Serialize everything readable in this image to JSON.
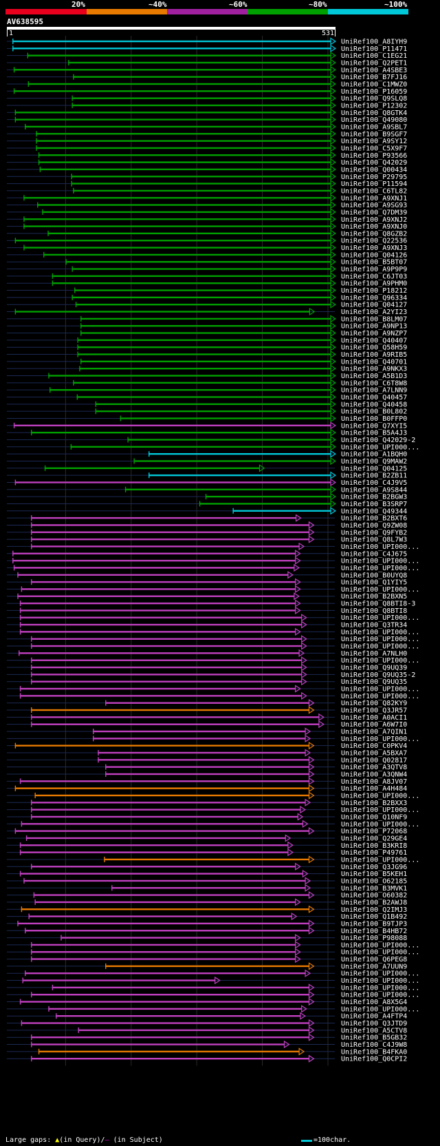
{
  "legend": {
    "labels": [
      "20%",
      "~40%",
      "~60%",
      "~80%",
      "~100%"
    ],
    "colors": [
      "#e8001c",
      "#e87a00",
      "#a020a0",
      "#00a000",
      "#00c8d8"
    ]
  },
  "query": {
    "id": "AV638595",
    "start": "1",
    "end": "531"
  },
  "chart_data": {
    "type": "alignment-overview",
    "query_length": 531,
    "x_range": [
      1,
      531
    ],
    "group_colors": {
      "cyan": "#00c8d8",
      "green": "#00a000",
      "purple": "#c040c0",
      "orange": "#e87a00"
    },
    "hits": [
      {
        "id": "UniRef100_A8IYH9",
        "s": 10,
        "e": 531,
        "c": "cyan"
      },
      {
        "id": "UniRef100_P11471",
        "s": 10,
        "e": 531,
        "c": "cyan"
      },
      {
        "id": "UniRef100_C1EG21",
        "s": 34,
        "e": 531,
        "c": "green"
      },
      {
        "id": "UniRef100_Q2PET1",
        "s": 100,
        "e": 531,
        "c": "green"
      },
      {
        "id": "UniRef100_A4SBE3",
        "s": 12,
        "e": 531,
        "c": "green"
      },
      {
        "id": "UniRef100_B7FJ16",
        "s": 108,
        "e": 531,
        "c": "green"
      },
      {
        "id": "UniRef100_C1MWZ0",
        "s": 35,
        "e": 531,
        "c": "green"
      },
      {
        "id": "UniRef100_P16059",
        "s": 12,
        "e": 531,
        "c": "green"
      },
      {
        "id": "UniRef100_Q9SLQ8",
        "s": 106,
        "e": 531,
        "c": "green"
      },
      {
        "id": "UniRef100_P12302",
        "s": 106,
        "e": 531,
        "c": "green"
      },
      {
        "id": "UniRef100_Q8GTK4",
        "s": 14,
        "e": 531,
        "c": "green"
      },
      {
        "id": "UniRef100_Q49080",
        "s": 14,
        "e": 531,
        "c": "green"
      },
      {
        "id": "UniRef100_A9SBL7",
        "s": 30,
        "e": 531,
        "c": "green"
      },
      {
        "id": "UniRef100_B9SGF7",
        "s": 48,
        "e": 531,
        "c": "green"
      },
      {
        "id": "UniRef100_A9SY12",
        "s": 48,
        "e": 531,
        "c": "green"
      },
      {
        "id": "UniRef100_C5X9F7",
        "s": 48,
        "e": 531,
        "c": "green"
      },
      {
        "id": "UniRef100_P93566",
        "s": 52,
        "e": 531,
        "c": "green"
      },
      {
        "id": "UniRef100_Q42029",
        "s": 52,
        "e": 531,
        "c": "green"
      },
      {
        "id": "UniRef100_Q00434",
        "s": 54,
        "e": 531,
        "c": "green"
      },
      {
        "id": "UniRef100_P29795",
        "s": 105,
        "e": 531,
        "c": "green"
      },
      {
        "id": "UniRef100_P11594",
        "s": 105,
        "e": 531,
        "c": "green"
      },
      {
        "id": "UniRef100_C6TL82",
        "s": 108,
        "e": 531,
        "c": "green"
      },
      {
        "id": "UniRef100_A9XNJ1",
        "s": 28,
        "e": 531,
        "c": "green"
      },
      {
        "id": "UniRef100_A9SG93",
        "s": 50,
        "e": 531,
        "c": "green"
      },
      {
        "id": "UniRef100_Q7DM39",
        "s": 58,
        "e": 531,
        "c": "green"
      },
      {
        "id": "UniRef100_A9XNJ2",
        "s": 28,
        "e": 531,
        "c": "green"
      },
      {
        "id": "UniRef100_A9XNJ0",
        "s": 28,
        "e": 531,
        "c": "green"
      },
      {
        "id": "UniRef100_Q8GZB2",
        "s": 67,
        "e": 531,
        "c": "green"
      },
      {
        "id": "UniRef100_Q22536",
        "s": 14,
        "e": 531,
        "c": "green"
      },
      {
        "id": "UniRef100_A9XNJ3",
        "s": 28,
        "e": 531,
        "c": "green"
      },
      {
        "id": "UniRef100_Q04126",
        "s": 60,
        "e": 531,
        "c": "green"
      },
      {
        "id": "UniRef100_B5BT07",
        "s": 96,
        "e": 531,
        "c": "green"
      },
      {
        "id": "UniRef100_A9P9P9",
        "s": 106,
        "e": 531,
        "c": "green"
      },
      {
        "id": "UniRef100_C6JT03",
        "s": 74,
        "e": 531,
        "c": "green"
      },
      {
        "id": "UniRef100_A9PHM0",
        "s": 74,
        "e": 531,
        "c": "green"
      },
      {
        "id": "UniRef100_P18212",
        "s": 110,
        "e": 531,
        "c": "green"
      },
      {
        "id": "UniRef100_Q96334",
        "s": 106,
        "e": 531,
        "c": "green"
      },
      {
        "id": "UniRef100_Q04127",
        "s": 112,
        "e": 531,
        "c": "green"
      },
      {
        "id": "UniRef100_A2YI23",
        "s": 14,
        "e": 497,
        "c": "green"
      },
      {
        "id": "UniRef100_B8LM07",
        "s": 120,
        "e": 531,
        "c": "green"
      },
      {
        "id": "UniRef100_A9NP13",
        "s": 120,
        "e": 531,
        "c": "green"
      },
      {
        "id": "UniRef100_A9NZP7",
        "s": 120,
        "e": 531,
        "c": "green"
      },
      {
        "id": "UniRef100_Q40407",
        "s": 115,
        "e": 531,
        "c": "green"
      },
      {
        "id": "UniRef100_Q58H59",
        "s": 115,
        "e": 531,
        "c": "green"
      },
      {
        "id": "UniRef100_A9RIB5",
        "s": 115,
        "e": 531,
        "c": "green"
      },
      {
        "id": "UniRef100_Q40701",
        "s": 120,
        "e": 531,
        "c": "green"
      },
      {
        "id": "UniRef100_A9NKX3",
        "s": 118,
        "e": 531,
        "c": "green"
      },
      {
        "id": "UniRef100_A5B1D3",
        "s": 68,
        "e": 531,
        "c": "green"
      },
      {
        "id": "UniRef100_C6T8W8",
        "s": 108,
        "e": 531,
        "c": "green"
      },
      {
        "id": "UniRef100_A7LNN9",
        "s": 70,
        "e": 531,
        "c": "green"
      },
      {
        "id": "UniRef100_Q40457",
        "s": 114,
        "e": 531,
        "c": "green"
      },
      {
        "id": "UniRef100_Q40458",
        "s": 144,
        "e": 531,
        "c": "green"
      },
      {
        "id": "UniRef100_B0L802",
        "s": 144,
        "e": 531,
        "c": "green"
      },
      {
        "id": "UniRef100_B0FFP0",
        "s": 184,
        "e": 531,
        "c": "green"
      },
      {
        "id": "UniRef100_Q7XYI5",
        "s": 12,
        "e": 531,
        "c": "purple"
      },
      {
        "id": "UniRef100_B5A4J3",
        "s": 40,
        "e": 531,
        "c": "green"
      },
      {
        "id": "UniRef100_Q42029-2",
        "s": 196,
        "e": 531,
        "c": "green"
      },
      {
        "id": "UniRef100_UPI000...",
        "s": 104,
        "e": 531,
        "c": "green"
      },
      {
        "id": "UniRef100_A1BQH0",
        "s": 230,
        "e": 531,
        "c": "cyan"
      },
      {
        "id": "UniRef100_Q9MAW2",
        "s": 206,
        "e": 531,
        "c": "green"
      },
      {
        "id": "UniRef100_Q04125",
        "s": 62,
        "e": 416,
        "c": "green"
      },
      {
        "id": "UniRef100_B2ZB11",
        "s": 230,
        "e": 531,
        "c": "cyan"
      },
      {
        "id": "UniRef100_C4J9V5",
        "s": 14,
        "e": 531,
        "c": "purple"
      },
      {
        "id": "UniRef100_A9S844",
        "s": 192,
        "e": 531,
        "c": "green"
      },
      {
        "id": "UniRef100_B2BGW3",
        "s": 322,
        "e": 531,
        "c": "green"
      },
      {
        "id": "UniRef100_B3SRP7",
        "s": 312,
        "e": 531,
        "c": "green"
      },
      {
        "id": "UniRef100_Q49344",
        "s": 366,
        "e": 531,
        "c": "cyan"
      },
      {
        "id": "UniRef100_B2BXT6",
        "s": 40,
        "e": 475,
        "c": "purple"
      },
      {
        "id": "UniRef100_Q9ZW08",
        "s": 40,
        "e": 496,
        "c": "purple"
      },
      {
        "id": "UniRef100_Q9FYB2",
        "s": 40,
        "e": 496,
        "c": "purple"
      },
      {
        "id": "UniRef100_Q8L7W3",
        "s": 40,
        "e": 496,
        "c": "purple"
      },
      {
        "id": "UniRef100_UPI000...",
        "s": 40,
        "e": 480,
        "c": "purple"
      },
      {
        "id": "UniRef100_C4J675",
        "s": 10,
        "e": 474,
        "c": "purple"
      },
      {
        "id": "UniRef100_UPI000...",
        "s": 10,
        "e": 474,
        "c": "purple"
      },
      {
        "id": "UniRef100_UPI000...",
        "s": 12,
        "e": 472,
        "c": "purple"
      },
      {
        "id": "UniRef100_B0UYQ8",
        "s": 18,
        "e": 462,
        "c": "purple"
      },
      {
        "id": "UniRef100_Q1YIY5",
        "s": 40,
        "e": 474,
        "c": "purple"
      },
      {
        "id": "UniRef100_UPI000...",
        "s": 24,
        "e": 474,
        "c": "purple"
      },
      {
        "id": "UniRef100_B2BXN5",
        "s": 18,
        "e": 472,
        "c": "purple"
      },
      {
        "id": "UniRef100_Q8BTI8-3",
        "s": 22,
        "e": 474,
        "c": "purple"
      },
      {
        "id": "UniRef100_Q8BTI8",
        "s": 22,
        "e": 474,
        "c": "purple"
      },
      {
        "id": "UniRef100_UPI000...",
        "s": 22,
        "e": 484,
        "c": "purple"
      },
      {
        "id": "UniRef100_Q3TR34",
        "s": 22,
        "e": 484,
        "c": "purple"
      },
      {
        "id": "UniRef100_UPI000...",
        "s": 22,
        "e": 474,
        "c": "purple"
      },
      {
        "id": "UniRef100_UPI000...",
        "s": 40,
        "e": 484,
        "c": "purple"
      },
      {
        "id": "UniRef100_UPI000...",
        "s": 40,
        "e": 484,
        "c": "purple"
      },
      {
        "id": "UniRef100_A7NLH0",
        "s": 20,
        "e": 480,
        "c": "purple"
      },
      {
        "id": "UniRef100_UPI000...",
        "s": 40,
        "e": 484,
        "c": "purple"
      },
      {
        "id": "UniRef100_Q9UQ39",
        "s": 40,
        "e": 484,
        "c": "purple"
      },
      {
        "id": "UniRef100_Q9UQ35-2",
        "s": 40,
        "e": 484,
        "c": "purple"
      },
      {
        "id": "UniRef100_Q9UQ35",
        "s": 40,
        "e": 484,
        "c": "purple"
      },
      {
        "id": "UniRef100_UPI000...",
        "s": 22,
        "e": 474,
        "c": "purple"
      },
      {
        "id": "UniRef100_UPI000...",
        "s": 22,
        "e": 484,
        "c": "purple"
      },
      {
        "id": "UniRef100_Q82KY9",
        "s": 160,
        "e": 496,
        "c": "purple"
      },
      {
        "id": "UniRef100_Q3JR57",
        "s": 40,
        "e": 496,
        "c": "orange"
      },
      {
        "id": "UniRef100_A0ACI1",
        "s": 40,
        "e": 512,
        "c": "purple"
      },
      {
        "id": "UniRef100_A6W7I0",
        "s": 40,
        "e": 512,
        "c": "purple"
      },
      {
        "id": "UniRef100_A7QIN1",
        "s": 140,
        "e": 490,
        "c": "purple"
      },
      {
        "id": "UniRef100_UPI000...",
        "s": 140,
        "e": 490,
        "c": "purple"
      },
      {
        "id": "UniRef100_C0PKV4",
        "s": 14,
        "e": 496,
        "c": "orange"
      },
      {
        "id": "UniRef100_A5BXA7",
        "s": 148,
        "e": 490,
        "c": "purple"
      },
      {
        "id": "UniRef100_Q02817",
        "s": 148,
        "e": 496,
        "c": "purple"
      },
      {
        "id": "UniRef100_A3QTV8",
        "s": 160,
        "e": 496,
        "c": "purple"
      },
      {
        "id": "UniRef100_A3QNW4",
        "s": 160,
        "e": 496,
        "c": "purple"
      },
      {
        "id": "UniRef100_A8JV07",
        "s": 22,
        "e": 496,
        "c": "purple"
      },
      {
        "id": "UniRef100_A4H484",
        "s": 14,
        "e": 496,
        "c": "orange"
      },
      {
        "id": "UniRef100_UPI000...",
        "s": 46,
        "e": 496,
        "c": "orange"
      },
      {
        "id": "UniRef100_B2BXX3",
        "s": 40,
        "e": 490,
        "c": "purple"
      },
      {
        "id": "UniRef100_UPI000...",
        "s": 40,
        "e": 482,
        "c": "purple"
      },
      {
        "id": "UniRef100_Q10NF9",
        "s": 40,
        "e": 478,
        "c": "purple"
      },
      {
        "id": "UniRef100_UPI000...",
        "s": 24,
        "e": 486,
        "c": "purple"
      },
      {
        "id": "UniRef100_P72068",
        "s": 14,
        "e": 496,
        "c": "purple"
      },
      {
        "id": "UniRef100_Q29GE4",
        "s": 32,
        "e": 458,
        "c": "purple"
      },
      {
        "id": "UniRef100_B3KRI8",
        "s": 22,
        "e": 462,
        "c": "purple"
      },
      {
        "id": "UniRef100_P49761",
        "s": 22,
        "e": 462,
        "c": "purple"
      },
      {
        "id": "UniRef100_UPI000...",
        "s": 158,
        "e": 496,
        "c": "orange"
      },
      {
        "id": "UniRef100_Q3JG96",
        "s": 40,
        "e": 474,
        "c": "purple"
      },
      {
        "id": "UniRef100_B5KEH1",
        "s": 22,
        "e": 486,
        "c": "purple"
      },
      {
        "id": "UniRef100_O62185",
        "s": 28,
        "e": 490,
        "c": "purple"
      },
      {
        "id": "UniRef100_B3MVK1",
        "s": 170,
        "e": 490,
        "c": "purple"
      },
      {
        "id": "UniRef100_O60382",
        "s": 44,
        "e": 496,
        "c": "purple"
      },
      {
        "id": "UniRef100_B2AWJ8",
        "s": 46,
        "e": 474,
        "c": "purple"
      },
      {
        "id": "UniRef100_Q2IMJ3",
        "s": 24,
        "e": 496,
        "c": "orange"
      },
      {
        "id": "UniRef100_Q1B492",
        "s": 36,
        "e": 468,
        "c": "purple"
      },
      {
        "id": "UniRef100_B9TJP3",
        "s": 18,
        "e": 496,
        "c": "purple"
      },
      {
        "id": "UniRef100_B4HB72",
        "s": 30,
        "e": 496,
        "c": "purple"
      },
      {
        "id": "UniRef100_P98088",
        "s": 88,
        "e": 474,
        "c": "purple"
      },
      {
        "id": "UniRef100_UPI000...",
        "s": 40,
        "e": 474,
        "c": "purple"
      },
      {
        "id": "UniRef100_UPI000...",
        "s": 40,
        "e": 474,
        "c": "purple"
      },
      {
        "id": "UniRef100_Q6PEG8",
        "s": 40,
        "e": 474,
        "c": "purple"
      },
      {
        "id": "UniRef100_A7UUN9",
        "s": 160,
        "e": 496,
        "c": "orange"
      },
      {
        "id": "UniRef100_UPI000...",
        "s": 30,
        "e": 490,
        "c": "purple"
      },
      {
        "id": "UniRef100_UPI000...",
        "s": 26,
        "e": 344,
        "c": "purple"
      },
      {
        "id": "UniRef100_UPI000...",
        "s": 74,
        "e": 496,
        "c": "purple"
      },
      {
        "id": "UniRef100_UPI000...",
        "s": 40,
        "e": 496,
        "c": "purple"
      },
      {
        "id": "UniRef100_A8X5G4",
        "s": 22,
        "e": 496,
        "c": "purple"
      },
      {
        "id": "UniRef100_UPI000...",
        "s": 68,
        "e": 484,
        "c": "purple"
      },
      {
        "id": "UniRef100_A4FTP4",
        "s": 80,
        "e": 482,
        "c": "purple"
      },
      {
        "id": "UniRef100_Q3JTD9",
        "s": 24,
        "e": 496,
        "c": "purple"
      },
      {
        "id": "UniRef100_A5CTV8",
        "s": 116,
        "e": 496,
        "c": "purple"
      },
      {
        "id": "UniRef100_B5GB32",
        "s": 40,
        "e": 496,
        "c": "purple"
      },
      {
        "id": "UniRef100_C4J9W8",
        "s": 40,
        "e": 456,
        "c": "purple"
      },
      {
        "id": "UniRef100_B4FKA0",
        "s": 52,
        "e": 480,
        "c": "orange"
      },
      {
        "id": "UniRef100_Q0CPI2",
        "s": 40,
        "e": 496,
        "c": "purple"
      }
    ]
  },
  "footer": {
    "gaps_label": "Large gaps:",
    "tri_glyph": "▲",
    "in_query": "(in Query)/",
    "dash_glyph": "–",
    "in_subject": " (in Subject)",
    "scale_text": "=100char."
  }
}
